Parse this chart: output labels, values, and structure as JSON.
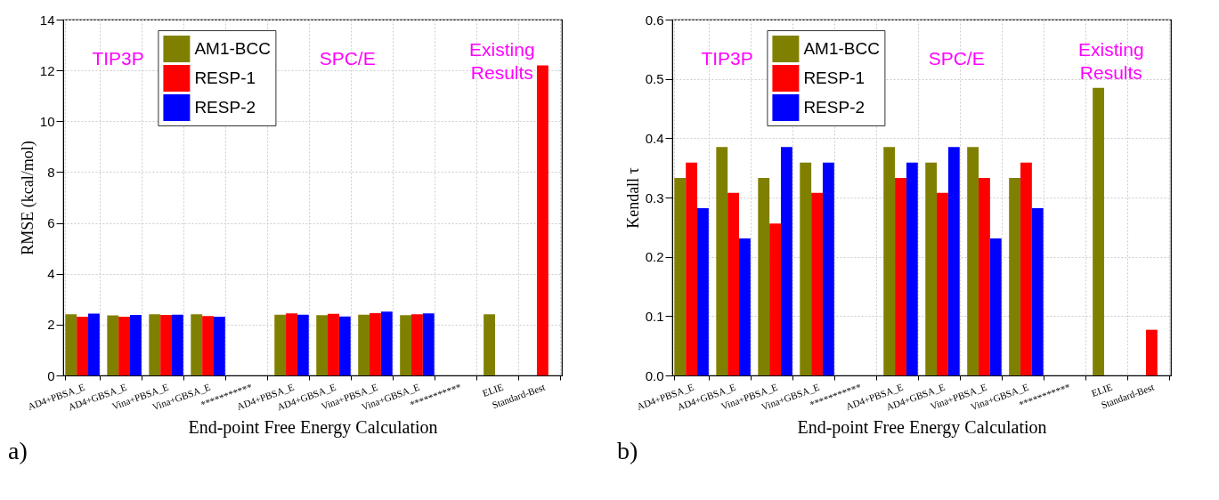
{
  "chart_data": [
    {
      "type": "bar",
      "xlabel": "End-point Free Energy Calculation",
      "ylabel": "RMSE (kcal/mol)",
      "categories": [
        "AD4+PBSA_E",
        "AD4+GBSA_E",
        "Vina+PBSA_E",
        "Vina+GBSA_E",
        "***********",
        "AD4+PBSA_E",
        "AD4+GBSA_E",
        "Vina+PBSA_E",
        "Vina+GBSA_E",
        "***********",
        "ELIE",
        "Standard-Best"
      ],
      "series": [
        {
          "name": "AM1-BCC",
          "color": "#808000",
          "values": [
            2.41,
            2.36,
            2.41,
            2.41,
            null,
            2.39,
            2.37,
            2.39,
            2.37,
            null,
            2.41,
            null
          ]
        },
        {
          "name": "RESP-1",
          "color": "#ff0000",
          "values": [
            2.31,
            2.31,
            2.38,
            2.34,
            null,
            2.44,
            2.42,
            2.45,
            2.41,
            null,
            null,
            12.2
          ]
        },
        {
          "name": "RESP-2",
          "color": "#0000ff",
          "values": [
            2.43,
            2.38,
            2.39,
            2.31,
            null,
            2.39,
            2.32,
            2.51,
            2.44,
            null,
            null,
            null
          ]
        }
      ],
      "ylim": [
        0,
        14
      ],
      "yticks": [
        0,
        2,
        4,
        6,
        8,
        10,
        12,
        14
      ],
      "grid": true,
      "legend": "top left",
      "annotations": [
        "TIP3P",
        "SPC/E",
        "Existing Results",
        "a)"
      ]
    },
    {
      "type": "bar",
      "xlabel": "End-point Free Energy Calculation",
      "ylabel": "Kendall τ",
      "categories": [
        "AD4+PBSA_E",
        "AD4+GBSA_E",
        "Vina+PBSA_E",
        "Vina+GBSA_E",
        "***********",
        "AD4+PBSA_E",
        "AD4+GBSA_E",
        "Vina+PBSA_E",
        "Vina+GBSA_E",
        "***********",
        "ELIE",
        "Standard-Best"
      ],
      "series": [
        {
          "name": "AM1-BCC",
          "color": "#808000",
          "values": [
            0.333,
            0.385,
            0.333,
            0.359,
            null,
            0.385,
            0.359,
            0.385,
            0.333,
            null,
            0.485,
            null
          ]
        },
        {
          "name": "RESP-1",
          "color": "#ff0000",
          "values": [
            0.359,
            0.308,
            0.256,
            0.308,
            null,
            0.333,
            0.308,
            0.333,
            0.359,
            null,
            null,
            0.077
          ]
        },
        {
          "name": "RESP-2",
          "color": "#0000ff",
          "values": [
            0.282,
            0.231,
            0.385,
            0.359,
            null,
            0.359,
            0.385,
            0.231,
            0.282,
            null,
            null,
            null
          ]
        }
      ],
      "ylim": [
        0,
        0.6
      ],
      "yticks": [
        {
          "value": 0,
          "label": "0.0"
        },
        0.1,
        0.2,
        0.3,
        0.4,
        0.5,
        0.6
      ],
      "grid": true,
      "legend": "top left",
      "annotations": [
        "TIP3P",
        "SPC/E",
        "Existing Results",
        "b)"
      ]
    }
  ]
}
